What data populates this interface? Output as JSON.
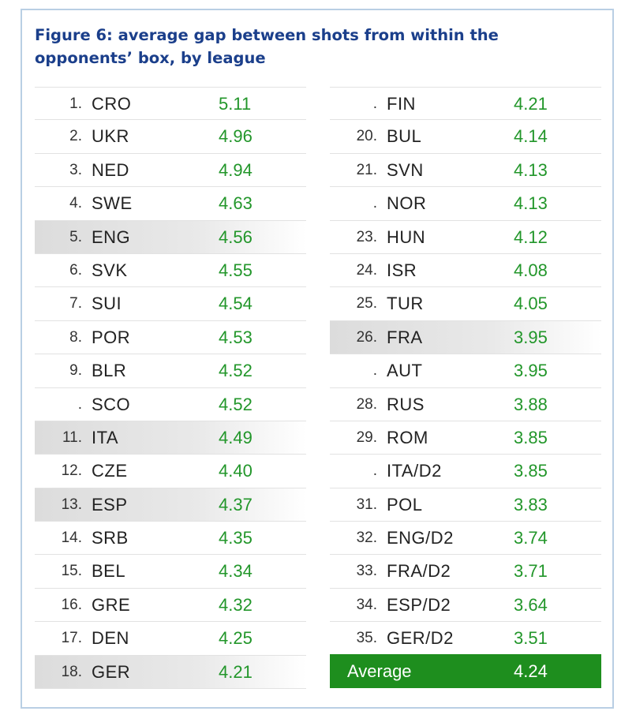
{
  "chart_data": {
    "type": "table",
    "title": "Figure 6: average gap between shots from within the opponents’ box, by league",
    "colors": {
      "value": "#22962a",
      "title": "#1b3f8b",
      "average_bg": "#1e8e1e"
    },
    "rows": [
      {
        "rank": "1.",
        "league": "CRO",
        "value": "5.11",
        "highlight": false
      },
      {
        "rank": "2.",
        "league": "UKR",
        "value": "4.96",
        "highlight": false
      },
      {
        "rank": "3.",
        "league": "NED",
        "value": "4.94",
        "highlight": false
      },
      {
        "rank": "4.",
        "league": "SWE",
        "value": "4.63",
        "highlight": false
      },
      {
        "rank": "5.",
        "league": "ENG",
        "value": "4.56",
        "highlight": true
      },
      {
        "rank": "6.",
        "league": "SVK",
        "value": "4.55",
        "highlight": false
      },
      {
        "rank": "7.",
        "league": "SUI",
        "value": "4.54",
        "highlight": false
      },
      {
        "rank": "8.",
        "league": "POR",
        "value": "4.53",
        "highlight": false
      },
      {
        "rank": "9.",
        "league": "BLR",
        "value": "4.52",
        "highlight": false
      },
      {
        "rank": ".",
        "league": "SCO",
        "value": "4.52",
        "highlight": false
      },
      {
        "rank": "11.",
        "league": "ITA",
        "value": "4.49",
        "highlight": true
      },
      {
        "rank": "12.",
        "league": "CZE",
        "value": "4.40",
        "highlight": false
      },
      {
        "rank": "13.",
        "league": "ESP",
        "value": "4.37",
        "highlight": true
      },
      {
        "rank": "14.",
        "league": "SRB",
        "value": "4.35",
        "highlight": false
      },
      {
        "rank": "15.",
        "league": "BEL",
        "value": "4.34",
        "highlight": false
      },
      {
        "rank": "16.",
        "league": "GRE",
        "value": "4.32",
        "highlight": false
      },
      {
        "rank": "17.",
        "league": "DEN",
        "value": "4.25",
        "highlight": false
      },
      {
        "rank": "18.",
        "league": "GER",
        "value": "4.21",
        "highlight": true
      },
      {
        "rank": ".",
        "league": "FIN",
        "value": "4.21",
        "highlight": false
      },
      {
        "rank": "20.",
        "league": "BUL",
        "value": "4.14",
        "highlight": false
      },
      {
        "rank": "21.",
        "league": "SVN",
        "value": "4.13",
        "highlight": false
      },
      {
        "rank": ".",
        "league": "NOR",
        "value": "4.13",
        "highlight": false
      },
      {
        "rank": "23.",
        "league": "HUN",
        "value": "4.12",
        "highlight": false
      },
      {
        "rank": "24.",
        "league": "ISR",
        "value": "4.08",
        "highlight": false
      },
      {
        "rank": "25.",
        "league": "TUR",
        "value": "4.05",
        "highlight": false
      },
      {
        "rank": "26.",
        "league": "FRA",
        "value": "3.95",
        "highlight": true
      },
      {
        "rank": ".",
        "league": "AUT",
        "value": "3.95",
        "highlight": false
      },
      {
        "rank": "28.",
        "league": "RUS",
        "value": "3.88",
        "highlight": false
      },
      {
        "rank": "29.",
        "league": "ROM",
        "value": "3.85",
        "highlight": false
      },
      {
        "rank": ".",
        "league": "ITA/D2",
        "value": "3.85",
        "highlight": false
      },
      {
        "rank": "31.",
        "league": "POL",
        "value": "3.83",
        "highlight": false
      },
      {
        "rank": "32.",
        "league": "ENG/D2",
        "value": "3.74",
        "highlight": false
      },
      {
        "rank": "33.",
        "league": "FRA/D2",
        "value": "3.71",
        "highlight": false
      },
      {
        "rank": "34.",
        "league": "ESP/D2",
        "value": "3.64",
        "highlight": false
      },
      {
        "rank": "35.",
        "league": "GER/D2",
        "value": "3.51",
        "highlight": false
      }
    ],
    "average": {
      "label": "Average",
      "value": "4.24"
    }
  }
}
